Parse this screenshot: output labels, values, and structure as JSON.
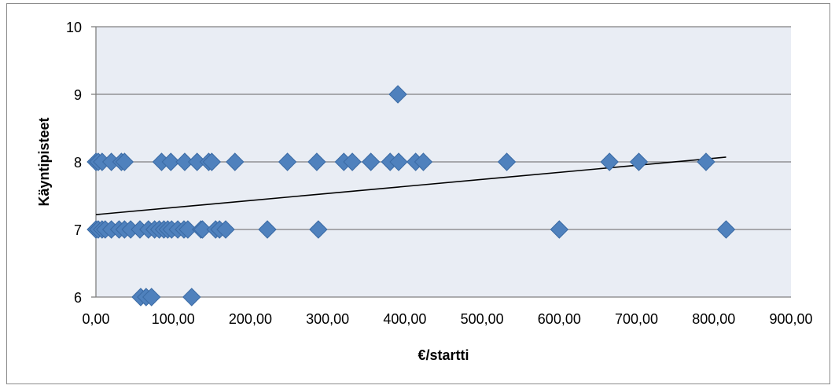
{
  "chart_data": {
    "type": "scatter",
    "title": "",
    "xlabel": "€/startti",
    "ylabel": "Käyntipisteet",
    "xlim": [
      0,
      900
    ],
    "ylim": [
      6,
      10
    ],
    "x_ticks": [
      0,
      100,
      200,
      300,
      400,
      500,
      600,
      700,
      800,
      900
    ],
    "x_tick_labels": [
      "0,00",
      "100,00",
      "200,00",
      "300,00",
      "400,00",
      "500,00",
      "600,00",
      "700,00",
      "800,00",
      "900,00"
    ],
    "y_ticks": [
      6,
      7,
      8,
      9,
      10
    ],
    "y_tick_labels": [
      "6",
      "7",
      "8",
      "9",
      "10"
    ],
    "grid": "horizontal",
    "legend": "none",
    "colors": {
      "plot_background": "#e9edf4",
      "marker": "#4f81bd",
      "marker_edge": "#3a6aa4",
      "gridline": "#808080",
      "trendline": "#000000"
    },
    "series": [
      {
        "marker": "diamond",
        "points": [
          [
            391,
            9
          ],
          [
            0,
            8
          ],
          [
            3,
            8
          ],
          [
            8,
            8
          ],
          [
            20,
            8
          ],
          [
            33,
            8
          ],
          [
            37,
            8
          ],
          [
            85,
            8
          ],
          [
            97,
            8
          ],
          [
            115,
            8
          ],
          [
            131,
            8
          ],
          [
            146,
            8
          ],
          [
            150,
            8
          ],
          [
            180,
            8
          ],
          [
            248,
            8
          ],
          [
            286,
            8
          ],
          [
            321,
            8
          ],
          [
            332,
            8
          ],
          [
            356,
            8
          ],
          [
            381,
            8
          ],
          [
            392,
            8
          ],
          [
            414,
            8
          ],
          [
            424,
            8
          ],
          [
            532,
            8
          ],
          [
            665,
            8
          ],
          [
            703,
            8
          ],
          [
            790,
            8
          ],
          [
            0,
            7
          ],
          [
            3,
            7
          ],
          [
            8,
            7
          ],
          [
            12,
            7
          ],
          [
            20,
            7
          ],
          [
            30,
            7
          ],
          [
            37,
            7
          ],
          [
            45,
            7
          ],
          [
            57,
            7
          ],
          [
            68,
            7
          ],
          [
            76,
            7
          ],
          [
            82,
            7
          ],
          [
            88,
            7
          ],
          [
            93,
            7
          ],
          [
            98,
            7
          ],
          [
            106,
            7
          ],
          [
            114,
            7
          ],
          [
            119,
            7
          ],
          [
            136,
            7
          ],
          [
            138,
            7
          ],
          [
            155,
            7
          ],
          [
            160,
            7
          ],
          [
            168,
            7
          ],
          [
            222,
            7
          ],
          [
            288,
            7
          ],
          [
            600,
            7
          ],
          [
            816,
            7
          ],
          [
            58,
            6
          ],
          [
            65,
            6
          ],
          [
            72,
            6
          ],
          [
            124,
            6
          ]
        ]
      }
    ],
    "trendline": {
      "type": "linear",
      "x_range": [
        0,
        816
      ],
      "y_start": 7.22,
      "y_end": 8.07
    }
  }
}
